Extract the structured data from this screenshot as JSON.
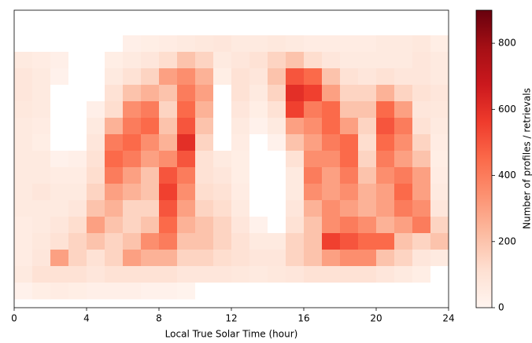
{
  "chart_data": {
    "type": "heatmap",
    "xlabel": "Local True Solar Time (hour)",
    "colorbar_label": "Number of profiles / retrievals",
    "colormap": "Reds",
    "xlim": [
      0,
      24
    ],
    "xticks": [
      0,
      4,
      8,
      12,
      16,
      20,
      24
    ],
    "clim": [
      0,
      900
    ],
    "cticks": [
      0,
      200,
      400,
      600,
      800
    ],
    "values": [
      [
        0,
        0,
        0,
        0,
        0,
        0,
        30,
        40,
        50,
        60,
        70,
        80,
        60,
        60,
        70,
        60,
        50,
        50,
        50,
        50,
        60,
        60,
        70,
        40
      ],
      [
        60,
        50,
        30,
        0,
        0,
        40,
        60,
        80,
        120,
        200,
        150,
        60,
        80,
        100,
        150,
        200,
        120,
        80,
        60,
        60,
        60,
        60,
        80,
        60
      ],
      [
        80,
        60,
        20,
        0,
        0,
        60,
        100,
        150,
        300,
        350,
        250,
        40,
        100,
        80,
        200,
        500,
        450,
        200,
        100,
        80,
        100,
        80,
        80,
        60
      ],
      [
        80,
        60,
        0,
        0,
        0,
        100,
        200,
        250,
        200,
        400,
        300,
        0,
        100,
        60,
        150,
        600,
        550,
        300,
        150,
        150,
        250,
        150,
        100,
        80
      ],
      [
        70,
        60,
        0,
        0,
        30,
        120,
        350,
        400,
        150,
        450,
        250,
        0,
        80,
        40,
        100,
        550,
        400,
        450,
        200,
        200,
        450,
        300,
        80,
        70
      ],
      [
        60,
        50,
        0,
        0,
        60,
        250,
        400,
        450,
        200,
        500,
        200,
        0,
        60,
        20,
        60,
        300,
        350,
        450,
        300,
        150,
        500,
        400,
        100,
        60
      ],
      [
        60,
        40,
        0,
        0,
        80,
        400,
        450,
        350,
        250,
        600,
        150,
        0,
        50,
        0,
        20,
        200,
        300,
        400,
        450,
        120,
        450,
        350,
        150,
        50
      ],
      [
        60,
        60,
        20,
        30,
        100,
        450,
        400,
        300,
        350,
        500,
        100,
        60,
        40,
        0,
        0,
        100,
        350,
        350,
        450,
        150,
        400,
        300,
        200,
        40
      ],
      [
        60,
        60,
        50,
        50,
        120,
        400,
        300,
        200,
        500,
        400,
        100,
        80,
        40,
        0,
        0,
        60,
        400,
        300,
        400,
        200,
        350,
        400,
        300,
        50
      ],
      [
        60,
        80,
        60,
        60,
        150,
        300,
        250,
        200,
        550,
        350,
        120,
        100,
        50,
        0,
        0,
        60,
        350,
        300,
        350,
        250,
        300,
        450,
        300,
        60
      ],
      [
        60,
        60,
        60,
        80,
        200,
        250,
        150,
        150,
        500,
        300,
        150,
        120,
        60,
        0,
        0,
        80,
        250,
        350,
        300,
        250,
        300,
        400,
        350,
        80
      ],
      [
        50,
        60,
        80,
        120,
        300,
        200,
        150,
        200,
        450,
        250,
        200,
        150,
        80,
        20,
        0,
        100,
        200,
        350,
        400,
        350,
        250,
        300,
        400,
        150
      ],
      [
        50,
        70,
        100,
        150,
        200,
        150,
        200,
        350,
        400,
        200,
        200,
        150,
        100,
        60,
        60,
        150,
        200,
        550,
        500,
        450,
        450,
        200,
        150,
        200
      ],
      [
        50,
        80,
        300,
        150,
        100,
        150,
        300,
        250,
        250,
        150,
        150,
        120,
        100,
        80,
        80,
        150,
        200,
        300,
        350,
        350,
        200,
        150,
        80,
        60
      ],
      [
        60,
        100,
        100,
        100,
        80,
        100,
        100,
        100,
        100,
        80,
        80,
        80,
        70,
        60,
        70,
        80,
        100,
        100,
        100,
        100,
        80,
        60,
        40,
        0
      ],
      [
        20,
        40,
        50,
        40,
        30,
        30,
        30,
        20,
        20,
        10,
        0,
        0,
        0,
        0,
        0,
        0,
        0,
        0,
        0,
        0,
        0,
        0,
        0,
        0
      ]
    ]
  }
}
